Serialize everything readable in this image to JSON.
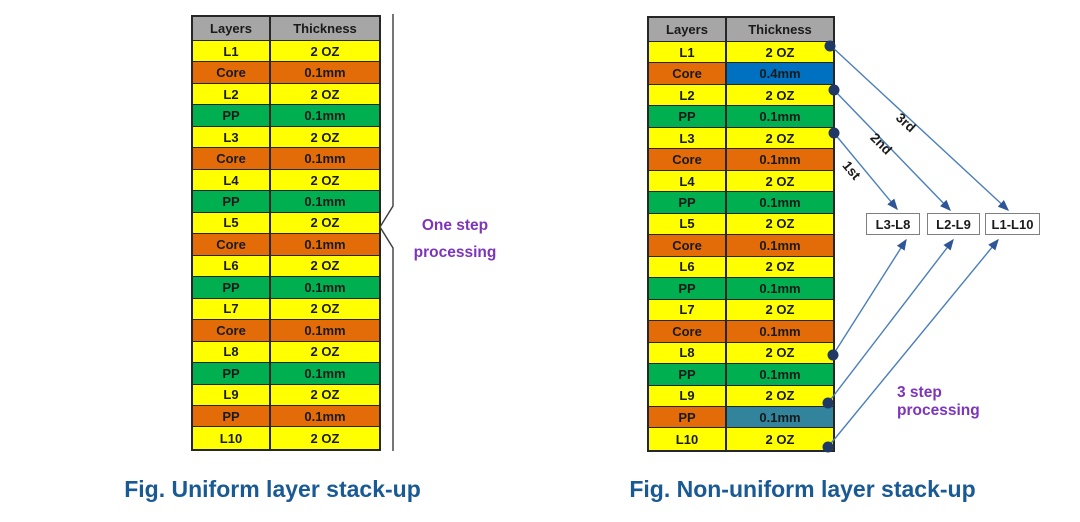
{
  "colors": {
    "yellow": "#FFFF00",
    "orange": "#E36C09",
    "green": "#00B050",
    "gray": "#A6A6A6",
    "blue": "#0070C0",
    "teal": "#31849B",
    "purple": "#7D34BB",
    "caption": "#1A5A94",
    "arrow": "#4A7EBB",
    "arrowhead": "#2E5596",
    "dot": "#1F3864",
    "border": "#262626"
  },
  "left_diagram": {
    "table": {
      "headers": [
        "Layers",
        "Thickness"
      ],
      "rows": [
        {
          "layer": "L1",
          "thickness": "2 OZ",
          "layer_color": "yellow",
          "thickness_color": "yellow"
        },
        {
          "layer": "Core",
          "thickness": "0.1mm",
          "layer_color": "orange",
          "thickness_color": "orange"
        },
        {
          "layer": "L2",
          "thickness": "2 OZ",
          "layer_color": "yellow",
          "thickness_color": "yellow"
        },
        {
          "layer": "PP",
          "thickness": "0.1mm",
          "layer_color": "green",
          "thickness_color": "green"
        },
        {
          "layer": "L3",
          "thickness": "2 OZ",
          "layer_color": "yellow",
          "thickness_color": "yellow"
        },
        {
          "layer": "Core",
          "thickness": "0.1mm",
          "layer_color": "orange",
          "thickness_color": "orange"
        },
        {
          "layer": "L4",
          "thickness": "2 OZ",
          "layer_color": "yellow",
          "thickness_color": "yellow"
        },
        {
          "layer": "PP",
          "thickness": "0.1mm",
          "layer_color": "green",
          "thickness_color": "green"
        },
        {
          "layer": "L5",
          "thickness": "2 OZ",
          "layer_color": "yellow",
          "thickness_color": "yellow"
        },
        {
          "layer": "Core",
          "thickness": "0.1mm",
          "layer_color": "orange",
          "thickness_color": "orange"
        },
        {
          "layer": "L6",
          "thickness": "2 OZ",
          "layer_color": "yellow",
          "thickness_color": "yellow"
        },
        {
          "layer": "PP",
          "thickness": "0.1mm",
          "layer_color": "green",
          "thickness_color": "green"
        },
        {
          "layer": "L7",
          "thickness": "2 OZ",
          "layer_color": "yellow",
          "thickness_color": "yellow"
        },
        {
          "layer": "Core",
          "thickness": "0.1mm",
          "layer_color": "orange",
          "thickness_color": "orange"
        },
        {
          "layer": "L8",
          "thickness": "2 OZ",
          "layer_color": "yellow",
          "thickness_color": "yellow"
        },
        {
          "layer": "PP",
          "thickness": "0.1mm",
          "layer_color": "green",
          "thickness_color": "green"
        },
        {
          "layer": "L9",
          "thickness": "2 OZ",
          "layer_color": "yellow",
          "thickness_color": "yellow"
        },
        {
          "layer": "PP",
          "thickness": "0.1mm",
          "layer_color": "orange",
          "thickness_color": "orange"
        },
        {
          "layer": "L10",
          "thickness": "2 OZ",
          "layer_color": "yellow",
          "thickness_color": "yellow"
        }
      ]
    },
    "annotation": {
      "line1": "One step",
      "line2": "processing"
    },
    "caption": "Fig. Uniform layer stack-up"
  },
  "right_diagram": {
    "table": {
      "headers": [
        "Layers",
        "Thickness"
      ],
      "rows": [
        {
          "layer": "L1",
          "thickness": "2 OZ",
          "layer_color": "yellow",
          "thickness_color": "yellow"
        },
        {
          "layer": "Core",
          "thickness": "0.4mm",
          "layer_color": "orange",
          "thickness_color": "blue"
        },
        {
          "layer": "L2",
          "thickness": "2 OZ",
          "layer_color": "yellow",
          "thickness_color": "yellow"
        },
        {
          "layer": "PP",
          "thickness": "0.1mm",
          "layer_color": "green",
          "thickness_color": "green"
        },
        {
          "layer": "L3",
          "thickness": "2 OZ",
          "layer_color": "yellow",
          "thickness_color": "yellow"
        },
        {
          "layer": "Core",
          "thickness": "0.1mm",
          "layer_color": "orange",
          "thickness_color": "orange"
        },
        {
          "layer": "L4",
          "thickness": "2 OZ",
          "layer_color": "yellow",
          "thickness_color": "yellow"
        },
        {
          "layer": "PP",
          "thickness": "0.1mm",
          "layer_color": "green",
          "thickness_color": "green"
        },
        {
          "layer": "L5",
          "thickness": "2 OZ",
          "layer_color": "yellow",
          "thickness_color": "yellow"
        },
        {
          "layer": "Core",
          "thickness": "0.1mm",
          "layer_color": "orange",
          "thickness_color": "orange"
        },
        {
          "layer": "L6",
          "thickness": "2 OZ",
          "layer_color": "yellow",
          "thickness_color": "yellow"
        },
        {
          "layer": "PP",
          "thickness": "0.1mm",
          "layer_color": "green",
          "thickness_color": "green"
        },
        {
          "layer": "L7",
          "thickness": "2 OZ",
          "layer_color": "yellow",
          "thickness_color": "yellow"
        },
        {
          "layer": "Core",
          "thickness": "0.1mm",
          "layer_color": "orange",
          "thickness_color": "orange"
        },
        {
          "layer": "L8",
          "thickness": "2 OZ",
          "layer_color": "yellow",
          "thickness_color": "yellow"
        },
        {
          "layer": "PP",
          "thickness": "0.1mm",
          "layer_color": "green",
          "thickness_color": "green"
        },
        {
          "layer": "L9",
          "thickness": "2 OZ",
          "layer_color": "yellow",
          "thickness_color": "yellow"
        },
        {
          "layer": "PP",
          "thickness": "0.1mm",
          "layer_color": "orange",
          "thickness_color": "teal"
        },
        {
          "layer": "L10",
          "thickness": "2 OZ",
          "layer_color": "yellow",
          "thickness_color": "yellow"
        }
      ]
    },
    "arrow_labels": [
      "1st",
      "2nd",
      "3rd"
    ],
    "step_boxes": [
      "L3-L8",
      "L2-L9",
      "L1-L10"
    ],
    "annotation": "3 step processing",
    "caption": "Fig. Non-uniform layer stack-up"
  }
}
